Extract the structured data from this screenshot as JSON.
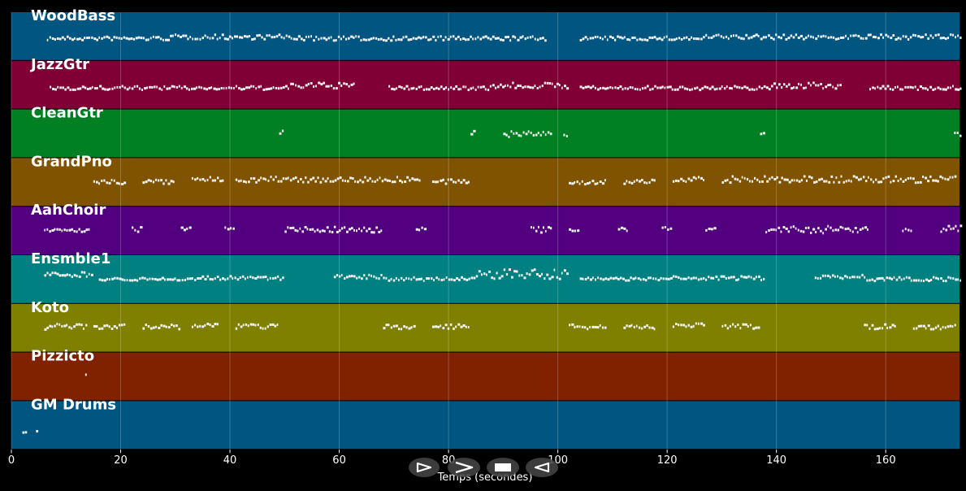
{
  "chart_data": {
    "type": "heatmap",
    "title": "",
    "xlabel": "Temps (secondes)",
    "ylabel": "",
    "xlim": [
      0,
      173.5
    ],
    "xticks": [
      0,
      20,
      40,
      60,
      80,
      100,
      120,
      140,
      160
    ],
    "grid": true,
    "tracks": [
      {
        "name": "WoodBass",
        "color": "#005581",
        "segments": [
          [
            6.5,
            29,
            0.55,
            0.08
          ],
          [
            29,
            52,
            0.52,
            0.1
          ],
          [
            52,
            98,
            0.55,
            0.09
          ],
          [
            104,
            127,
            0.55,
            0.08
          ],
          [
            127,
            174,
            0.52,
            0.1
          ]
        ]
      },
      {
        "name": "JazzGtr",
        "color": "#800036",
        "segments": [
          [
            7,
            51,
            0.57,
            0.08
          ],
          [
            51,
            63,
            0.52,
            0.12
          ],
          [
            69,
            88,
            0.57,
            0.08
          ],
          [
            88,
            102,
            0.52,
            0.12
          ],
          [
            104,
            139,
            0.57,
            0.08
          ],
          [
            139,
            152,
            0.52,
            0.12
          ],
          [
            157,
            174,
            0.57,
            0.08
          ]
        ]
      },
      {
        "name": "CleanGtr",
        "color": "#008022",
        "segments": [
          [
            49,
            50,
            0.48,
            0.08
          ],
          [
            84,
            85,
            0.48,
            0.08
          ],
          [
            90,
            99,
            0.52,
            0.12
          ],
          [
            101,
            102,
            0.55,
            0.04
          ],
          [
            137,
            138,
            0.48,
            0.08
          ],
          [
            172.5,
            174,
            0.52,
            0.1
          ]
        ]
      },
      {
        "name": "GrandPno",
        "color": "#805300",
        "segments": [
          [
            15,
            21,
            0.5,
            0.1
          ],
          [
            24,
            30,
            0.5,
            0.1
          ],
          [
            33,
            39,
            0.45,
            0.1
          ],
          [
            41,
            75,
            0.45,
            0.12
          ],
          [
            77,
            84,
            0.5,
            0.1
          ],
          [
            102,
            109,
            0.5,
            0.1
          ],
          [
            112,
            118,
            0.5,
            0.1
          ],
          [
            121,
            127,
            0.45,
            0.1
          ],
          [
            130,
            173,
            0.45,
            0.14
          ]
        ]
      },
      {
        "name": "AahChoir",
        "color": "#530080",
        "segments": [
          [
            6,
            14.5,
            0.5,
            0.06
          ],
          [
            22,
            24,
            0.48,
            0.1
          ],
          [
            31,
            33,
            0.48,
            0.1
          ],
          [
            39,
            41,
            0.48,
            0.1
          ],
          [
            50,
            68,
            0.48,
            0.12
          ],
          [
            74,
            76,
            0.48,
            0.1
          ],
          [
            95,
            99,
            0.48,
            0.15
          ],
          [
            102,
            104,
            0.5,
            0.06
          ],
          [
            111,
            113,
            0.48,
            0.1
          ],
          [
            119,
            121,
            0.48,
            0.1
          ],
          [
            127,
            129,
            0.48,
            0.1
          ],
          [
            138,
            157,
            0.48,
            0.15
          ],
          [
            163,
            165,
            0.48,
            0.1
          ],
          [
            170,
            174,
            0.45,
            0.15
          ]
        ]
      },
      {
        "name": "Ensmble1",
        "color": "#008080",
        "segments": [
          [
            6,
            15,
            0.4,
            0.1
          ],
          [
            16,
            33,
            0.5,
            0.06
          ],
          [
            33,
            50,
            0.48,
            0.08
          ],
          [
            59,
            68,
            0.45,
            0.08
          ],
          [
            68,
            85,
            0.5,
            0.08
          ],
          [
            85,
            102,
            0.4,
            0.2
          ],
          [
            104,
            121,
            0.5,
            0.06
          ],
          [
            121,
            138,
            0.48,
            0.08
          ],
          [
            147,
            156,
            0.45,
            0.08
          ],
          [
            156,
            174,
            0.5,
            0.08
          ]
        ]
      },
      {
        "name": "Koto",
        "color": "#808000",
        "segments": [
          [
            6,
            14,
            0.48,
            0.12
          ],
          [
            15,
            21,
            0.48,
            0.1
          ],
          [
            24,
            31,
            0.48,
            0.1
          ],
          [
            33,
            38,
            0.45,
            0.08
          ],
          [
            41,
            49,
            0.48,
            0.1
          ],
          [
            68,
            74,
            0.48,
            0.1
          ],
          [
            77,
            84,
            0.48,
            0.1
          ],
          [
            102,
            109,
            0.48,
            0.1
          ],
          [
            112,
            118,
            0.48,
            0.1
          ],
          [
            121,
            127,
            0.45,
            0.08
          ],
          [
            130,
            137,
            0.48,
            0.1
          ],
          [
            156,
            162,
            0.48,
            0.1
          ],
          [
            165,
            173,
            0.48,
            0.1
          ]
        ]
      },
      {
        "name": "Pizzicto",
        "color": "#802200",
        "segments": [
          [
            13.5,
            14,
            0.5,
            0.12
          ]
        ]
      },
      {
        "name": "GM Drums",
        "color": "#005581",
        "segments": [
          [
            2,
            3,
            0.65,
            0.04
          ],
          [
            4.5,
            5,
            0.65,
            0.04
          ]
        ]
      }
    ]
  },
  "controls": {
    "buttons": [
      {
        "name": "play-button",
        "icon": "play-icon"
      },
      {
        "name": "fast-forward-button",
        "icon": "fast-forward-icon"
      },
      {
        "name": "stop-button",
        "icon": "stop-icon"
      },
      {
        "name": "rewind-button",
        "icon": "rewind-icon"
      }
    ]
  }
}
